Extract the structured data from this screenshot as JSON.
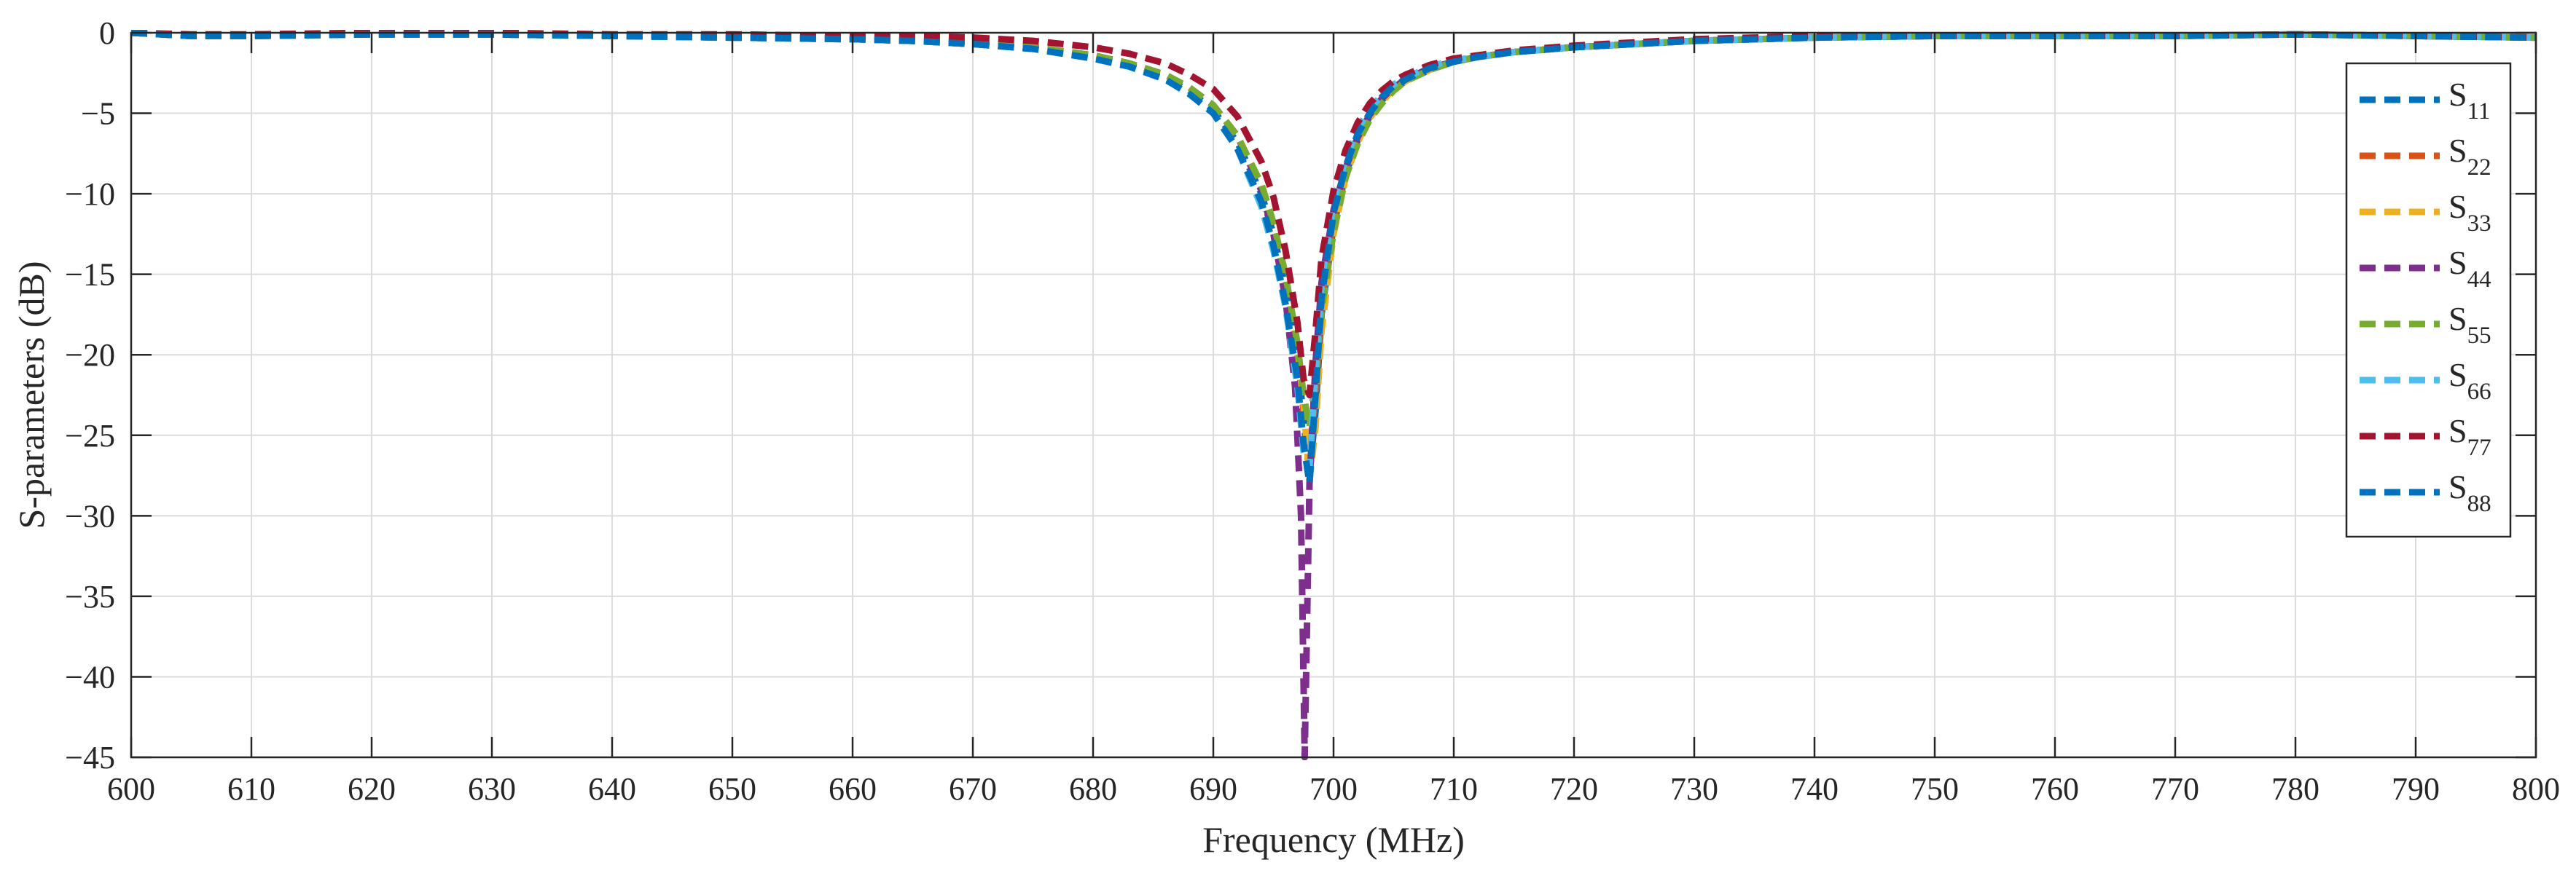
{
  "chart_data": {
    "type": "line",
    "title": "",
    "xlabel": "Frequency (MHz)",
    "ylabel": "S-parameters (dB)",
    "xlim": [
      600,
      800
    ],
    "ylim": [
      -45,
      0
    ],
    "xticks": [
      600,
      610,
      620,
      630,
      640,
      650,
      660,
      670,
      680,
      690,
      700,
      710,
      720,
      730,
      740,
      750,
      760,
      770,
      780,
      790,
      800
    ],
    "yticks": [
      0,
      -5,
      -10,
      -15,
      -20,
      -25,
      -30,
      -35,
      -40,
      -45
    ],
    "xtick_labels": [
      "600",
      "610",
      "620",
      "630",
      "640",
      "650",
      "660",
      "670",
      "680",
      "690",
      "700",
      "710",
      "720",
      "730",
      "740",
      "750",
      "760",
      "770",
      "780",
      "790",
      "800"
    ],
    "ytick_labels": [
      "0",
      "−5",
      "−10",
      "−15",
      "−20",
      "−25",
      "−30",
      "−35",
      "−40",
      "−45"
    ],
    "grid": true,
    "legend_position": "top-right",
    "line_style": "dashed",
    "series": [
      {
        "name": "S",
        "subscript": "11",
        "color": "#0072BD",
        "x": [
          600,
          605,
          610,
          620,
          630,
          640,
          650,
          660,
          665,
          670,
          675,
          680,
          683,
          686,
          688,
          690,
          692,
          694,
          695,
          696,
          697,
          697.5,
          698,
          698.5,
          699,
          700,
          701,
          702,
          703,
          704,
          705,
          706,
          708,
          710,
          712,
          715,
          720,
          730,
          740,
          750,
          760,
          770,
          780,
          790,
          800
        ],
        "y": [
          0,
          -0.2,
          -0.2,
          -0.1,
          -0.1,
          -0.2,
          -0.3,
          -0.4,
          -0.5,
          -0.7,
          -1.0,
          -1.5,
          -2.0,
          -2.8,
          -3.6,
          -4.8,
          -6.8,
          -10.0,
          -12.5,
          -15.8,
          -20.0,
          -24.0,
          -27.5,
          -23.5,
          -17.5,
          -12.0,
          -8.8,
          -6.7,
          -5.2,
          -4.2,
          -3.5,
          -3.0,
          -2.3,
          -1.8,
          -1.5,
          -1.2,
          -0.9,
          -0.5,
          -0.3,
          -0.2,
          -0.2,
          -0.2,
          -0.1,
          -0.2,
          -0.3
        ]
      },
      {
        "name": "S",
        "subscript": "22",
        "color": "#D95319",
        "x": [
          600,
          605,
          610,
          620,
          630,
          640,
          650,
          660,
          665,
          670,
          675,
          680,
          683,
          686,
          688,
          690,
          692,
          694,
          695,
          696,
          697,
          697.5,
          698,
          698.5,
          699,
          700,
          701,
          702,
          703,
          704,
          705,
          706,
          708,
          710,
          712,
          715,
          720,
          730,
          740,
          750,
          760,
          770,
          780,
          790,
          800
        ],
        "y": [
          0,
          -0.2,
          -0.2,
          -0.1,
          -0.1,
          -0.2,
          -0.3,
          -0.4,
          -0.5,
          -0.7,
          -0.9,
          -1.4,
          -1.9,
          -2.6,
          -3.4,
          -4.5,
          -6.4,
          -9.5,
          -12.0,
          -15.2,
          -19.8,
          -23.5,
          -26.0,
          -22.5,
          -17.0,
          -11.7,
          -8.6,
          -6.5,
          -5.1,
          -4.1,
          -3.4,
          -2.9,
          -2.2,
          -1.8,
          -1.5,
          -1.2,
          -0.9,
          -0.5,
          -0.3,
          -0.2,
          -0.2,
          -0.2,
          -0.1,
          -0.2,
          -0.3
        ]
      },
      {
        "name": "S",
        "subscript": "33",
        "color": "#EDB120",
        "x": [
          600,
          605,
          610,
          620,
          630,
          640,
          650,
          660,
          665,
          670,
          675,
          680,
          683,
          686,
          688,
          690,
          692,
          694,
          695,
          696,
          697,
          697.5,
          698,
          698.5,
          699,
          700,
          701,
          702,
          703,
          704,
          705,
          706,
          708,
          710,
          712,
          715,
          720,
          730,
          740,
          750,
          760,
          770,
          780,
          790,
          800
        ],
        "y": [
          0,
          -0.2,
          -0.2,
          -0.1,
          -0.1,
          -0.2,
          -0.3,
          -0.4,
          -0.5,
          -0.7,
          -0.9,
          -1.4,
          -1.9,
          -2.6,
          -3.4,
          -4.5,
          -6.4,
          -9.4,
          -11.8,
          -15.0,
          -19.5,
          -23.0,
          -27.8,
          -24.5,
          -18.5,
          -12.5,
          -9.0,
          -6.8,
          -5.3,
          -4.3,
          -3.5,
          -3.0,
          -2.3,
          -1.8,
          -1.5,
          -1.2,
          -0.9,
          -0.5,
          -0.3,
          -0.2,
          -0.2,
          -0.2,
          -0.1,
          -0.2,
          -0.3
        ]
      },
      {
        "name": "S",
        "subscript": "44",
        "color": "#7E2F8E",
        "x": [
          600,
          605,
          610,
          620,
          630,
          640,
          650,
          660,
          665,
          670,
          675,
          680,
          683,
          686,
          688,
          690,
          692,
          694,
          695,
          696,
          696.8,
          697.3,
          697.6,
          698,
          698.5,
          699,
          700,
          701,
          702,
          703,
          704,
          705,
          706,
          708,
          710,
          712,
          715,
          720,
          730,
          740,
          750,
          760,
          770,
          780,
          790,
          800
        ],
        "y": [
          0,
          -0.2,
          -0.2,
          -0.1,
          -0.1,
          -0.2,
          -0.3,
          -0.4,
          -0.5,
          -0.7,
          -0.9,
          -1.4,
          -1.9,
          -2.6,
          -3.4,
          -4.5,
          -6.4,
          -9.8,
          -12.5,
          -16.5,
          -22.0,
          -30.0,
          -45.0,
          -28.0,
          -20.5,
          -15.5,
          -11.0,
          -8.4,
          -6.5,
          -5.1,
          -4.1,
          -3.4,
          -2.9,
          -2.2,
          -1.8,
          -1.5,
          -1.2,
          -0.9,
          -0.5,
          -0.3,
          -0.2,
          -0.2,
          -0.2,
          -0.1,
          -0.2,
          -0.3
        ]
      },
      {
        "name": "S",
        "subscript": "55",
        "color": "#77AC30",
        "x": [
          600,
          605,
          610,
          620,
          630,
          640,
          650,
          660,
          665,
          670,
          675,
          680,
          683,
          686,
          688,
          690,
          692,
          694,
          695,
          696,
          697,
          697.5,
          698,
          698.5,
          699,
          700,
          701,
          702,
          703,
          704,
          705,
          706,
          708,
          710,
          712,
          715,
          720,
          730,
          740,
          750,
          760,
          770,
          780,
          790,
          800
        ],
        "y": [
          0,
          -0.2,
          -0.2,
          -0.1,
          -0.1,
          -0.2,
          -0.3,
          -0.4,
          -0.5,
          -0.7,
          -0.9,
          -1.4,
          -1.9,
          -2.6,
          -3.4,
          -4.5,
          -6.4,
          -9.4,
          -11.8,
          -15.0,
          -19.3,
          -22.5,
          -24.5,
          -21.5,
          -17.2,
          -12.4,
          -9.0,
          -6.9,
          -5.4,
          -4.4,
          -3.6,
          -3.0,
          -2.3,
          -1.8,
          -1.5,
          -1.2,
          -0.9,
          -0.5,
          -0.3,
          -0.2,
          -0.2,
          -0.2,
          -0.1,
          -0.2,
          -0.3
        ]
      },
      {
        "name": "S",
        "subscript": "66",
        "color": "#4DBEEE",
        "x": [
          600,
          605,
          610,
          620,
          630,
          640,
          650,
          660,
          665,
          670,
          675,
          680,
          683,
          686,
          688,
          690,
          692,
          694,
          695,
          696,
          697,
          697.5,
          698,
          698.5,
          699,
          700,
          701,
          702,
          703,
          704,
          705,
          706,
          708,
          710,
          712,
          715,
          720,
          730,
          740,
          750,
          760,
          770,
          780,
          790,
          800
        ],
        "y": [
          0,
          -0.2,
          -0.2,
          -0.1,
          -0.1,
          -0.2,
          -0.3,
          -0.4,
          -0.5,
          -0.7,
          -1.0,
          -1.6,
          -2.1,
          -2.9,
          -3.8,
          -5.0,
          -7.2,
          -10.8,
          -13.5,
          -17.0,
          -22.0,
          -26.0,
          -27.0,
          -21.0,
          -15.5,
          -10.5,
          -7.8,
          -6.0,
          -4.7,
          -3.9,
          -3.2,
          -2.8,
          -2.1,
          -1.7,
          -1.5,
          -1.2,
          -0.9,
          -0.5,
          -0.3,
          -0.2,
          -0.2,
          -0.2,
          -0.1,
          -0.2,
          -0.3
        ]
      },
      {
        "name": "S",
        "subscript": "77",
        "color": "#A2142F",
        "x": [
          600,
          605,
          610,
          620,
          630,
          640,
          650,
          660,
          665,
          670,
          675,
          680,
          683,
          686,
          688,
          690,
          692,
          694,
          695,
          696,
          697,
          697.5,
          698,
          698.5,
          699,
          700,
          701,
          702,
          703,
          704,
          705,
          706,
          708,
          710,
          712,
          715,
          720,
          730,
          740,
          750,
          760,
          770,
          780,
          790,
          800
        ],
        "y": [
          0,
          -0.1,
          -0.1,
          0,
          0,
          -0.1,
          -0.1,
          -0.2,
          -0.2,
          -0.3,
          -0.5,
          -0.9,
          -1.3,
          -1.9,
          -2.6,
          -3.5,
          -5.2,
          -8.0,
          -10.2,
          -13.5,
          -18.0,
          -21.5,
          -22.5,
          -18.5,
          -14.0,
          -9.8,
          -7.3,
          -5.6,
          -4.4,
          -3.6,
          -3.0,
          -2.6,
          -2.0,
          -1.6,
          -1.4,
          -1.1,
          -0.8,
          -0.4,
          -0.2,
          -0.2,
          -0.2,
          -0.2,
          -0.1,
          -0.2,
          -0.3
        ]
      },
      {
        "name": "S",
        "subscript": "88",
        "color": "#0072BD",
        "x": [
          600,
          605,
          610,
          620,
          630,
          640,
          650,
          660,
          665,
          670,
          675,
          680,
          683,
          686,
          688,
          690,
          692,
          694,
          695,
          696,
          697,
          697.5,
          698,
          698.5,
          699,
          700,
          701,
          702,
          703,
          704,
          705,
          706,
          708,
          710,
          712,
          715,
          720,
          730,
          740,
          750,
          760,
          770,
          780,
          790,
          800
        ],
        "y": [
          0,
          -0.2,
          -0.2,
          -0.1,
          -0.1,
          -0.2,
          -0.3,
          -0.4,
          -0.5,
          -0.7,
          -1.0,
          -1.6,
          -2.1,
          -2.9,
          -3.8,
          -5.0,
          -7.2,
          -10.5,
          -13.2,
          -16.8,
          -21.5,
          -25.5,
          -28.0,
          -22.5,
          -16.5,
          -11.2,
          -8.3,
          -6.3,
          -5.0,
          -4.0,
          -3.3,
          -2.9,
          -2.2,
          -1.8,
          -1.5,
          -1.2,
          -0.9,
          -0.5,
          -0.3,
          -0.2,
          -0.2,
          -0.2,
          -0.1,
          -0.2,
          -0.3
        ]
      }
    ]
  }
}
